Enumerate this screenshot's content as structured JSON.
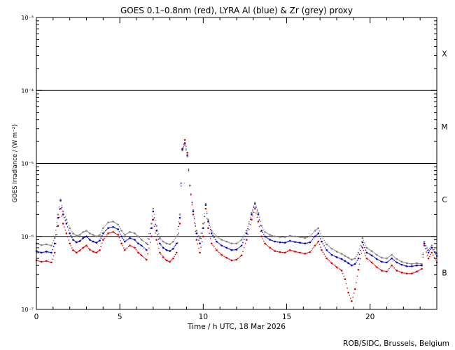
{
  "chart_data": {
    "type": "scatter",
    "title": "GOES 0.1–0.8nm (red), LYRA Al (blue) & Zr (grey) proxy",
    "xlabel": "Time / h UTC, 18 Mar 2026",
    "ylabel": "GOES Irradiance / (W m⁻²)",
    "credit": "ROB/SIDC, Brussels, Belgium",
    "xlim": [
      0,
      24
    ],
    "ylim": [
      1e-07,
      0.001
    ],
    "yscale": "log",
    "xticks": [
      0,
      5,
      10,
      15,
      20
    ],
    "xtick_labels": [
      "0",
      "5",
      "10",
      "15",
      "20"
    ],
    "yticks": [
      1e-07,
      1e-06,
      1e-05,
      0.0001,
      0.001
    ],
    "ytick_labels": [
      "10⁻⁷",
      "10⁻⁶",
      "10⁻⁵",
      "10⁻⁴",
      "10⁻³"
    ],
    "hlines": [
      1e-06,
      1e-05,
      0.0001
    ],
    "class_labels": [
      {
        "label": "B",
        "y": 3.2e-07
      },
      {
        "label": "C",
        "y": 3.2e-06
      },
      {
        "label": "M",
        "y": 3.2e-05
      },
      {
        "label": "X",
        "y": 0.00032
      }
    ],
    "colors": {
      "goes": "#dd0000",
      "lyra_al": "#0000cc",
      "lyra_zr": "#808080"
    },
    "series": [
      {
        "name": "GOES 0.1–0.8nm",
        "color": "#dd0000",
        "x": [
          0.0,
          0.3,
          0.6,
          0.9,
          1.1,
          1.3,
          1.45,
          1.6,
          1.8,
          2.0,
          2.2,
          2.4,
          2.6,
          2.8,
          3.0,
          3.2,
          3.4,
          3.6,
          3.8,
          4.0,
          4.3,
          4.6,
          4.9,
          5.1,
          5.3,
          5.6,
          5.9,
          6.1,
          6.3,
          6.6,
          6.9,
          7.0,
          7.2,
          7.4,
          7.6,
          7.8,
          8.0,
          8.2,
          8.4,
          8.6,
          8.75,
          8.9,
          9.05,
          9.2,
          9.4,
          9.6,
          9.8,
          10.0,
          10.15,
          10.3,
          10.5,
          10.8,
          11.1,
          11.4,
          11.7,
          12.0,
          12.3,
          12.6,
          12.9,
          13.1,
          13.3,
          13.5,
          13.7,
          14.0,
          14.3,
          14.6,
          14.9,
          15.2,
          15.5,
          15.8,
          16.1,
          16.4,
          16.7,
          16.9,
          17.1,
          17.4,
          17.7,
          18.0,
          18.3,
          18.5,
          18.7,
          18.9,
          19.1,
          19.3,
          19.55,
          19.8,
          20.1,
          20.4,
          20.7,
          21.0,
          21.3,
          21.6,
          21.9,
          22.2,
          22.5,
          22.8,
          23.1,
          23.25,
          23.5,
          23.7,
          24.0
        ],
        "y": [
          4.7e-07,
          4.5e-07,
          4.6e-07,
          4.4e-07,
          6e-07,
          1.4e-06,
          2.4e-06,
          1.5e-06,
          1.1e-06,
          8e-07,
          6.5e-07,
          6e-07,
          6.4e-07,
          7e-07,
          7.5e-07,
          6.6e-07,
          6.2e-07,
          6e-07,
          6.5e-07,
          9e-07,
          1.1e-06,
          1.15e-06,
          1.05e-06,
          8e-07,
          6.5e-07,
          7.5e-07,
          7e-07,
          6e-07,
          5.5e-07,
          4.8e-07,
          1e-06,
          1.7e-06,
          9e-07,
          6e-07,
          5.2e-07,
          4.7e-07,
          4.5e-07,
          5e-07,
          6e-07,
          1.5e-06,
          1.6e-05,
          2.1e-05,
          1.4e-05,
          5e-06,
          2e-06,
          9e-07,
          6e-07,
          1e-06,
          2.4e-06,
          1.3e-06,
          8e-07,
          6.5e-07,
          5.6e-07,
          5.1e-07,
          4.7e-07,
          4.8e-07,
          5.5e-07,
          9e-07,
          1.7e-06,
          2.4e-06,
          1.6e-06,
          1e-06,
          8e-07,
          7e-07,
          6.3e-07,
          6.1e-07,
          6e-07,
          6.5e-07,
          6.2e-07,
          6e-07,
          5.8e-07,
          6.1e-07,
          7.5e-07,
          8.5e-07,
          6.5e-07,
          5e-07,
          4.3e-07,
          3.8e-07,
          3.4e-07,
          2.6e-07,
          1.7e-07,
          1.3e-07,
          1.9e-07,
          3.5e-07,
          7e-07,
          5e-07,
          4.4e-07,
          3.8e-07,
          3.4e-07,
          3.3e-07,
          4e-07,
          3.4e-07,
          3.2e-07,
          3.1e-07,
          3.1e-07,
          3.3e-07,
          3.6e-07,
          7.5e-07,
          5e-07,
          6e-07,
          4.4e-07
        ]
      },
      {
        "name": "LYRA Al proxy",
        "color": "#0000cc",
        "x": [
          0.0,
          0.3,
          0.6,
          0.9,
          1.1,
          1.3,
          1.45,
          1.6,
          1.8,
          2.0,
          2.2,
          2.4,
          2.6,
          2.8,
          3.0,
          3.2,
          3.4,
          3.6,
          3.8,
          4.0,
          4.3,
          4.6,
          4.9,
          5.1,
          5.3,
          5.6,
          5.9,
          6.1,
          6.3,
          6.6,
          6.9,
          7.0,
          7.2,
          7.4,
          7.6,
          7.8,
          8.0,
          8.2,
          8.4,
          8.6,
          8.75,
          8.9,
          9.05,
          9.2,
          9.4,
          9.6,
          9.8,
          10.0,
          10.15,
          10.3,
          10.5,
          10.8,
          11.1,
          11.4,
          11.7,
          12.0,
          12.3,
          12.6,
          12.9,
          13.1,
          13.3,
          13.5,
          13.7,
          14.0,
          14.3,
          14.6,
          14.9,
          15.2,
          15.5,
          15.8,
          16.1,
          16.4,
          16.7,
          16.9,
          17.1,
          17.4,
          17.7,
          18.0,
          18.3,
          18.5,
          18.7,
          18.9,
          19.1,
          19.3,
          19.55,
          19.8,
          20.1,
          20.4,
          20.7,
          21.0,
          21.3,
          21.6,
          21.9,
          22.2,
          22.5,
          22.8,
          23.1,
          23.25,
          23.5,
          23.7,
          24.0
        ],
        "y": [
          6.3e-07,
          6e-07,
          6.2e-07,
          6e-07,
          8e-07,
          1.8e-06,
          3.1e-06,
          2e-06,
          1.5e-06,
          1.1e-06,
          9e-07,
          8.3e-07,
          8.6e-07,
          9.5e-07,
          1e-06,
          9e-07,
          8.5e-07,
          8.2e-07,
          8.8e-07,
          1.1e-06,
          1.3e-06,
          1.35e-06,
          1.25e-06,
          1e-06,
          8.5e-07,
          9.5e-07,
          9e-07,
          8e-07,
          7.5e-07,
          6.5e-07,
          1.3e-06,
          2.2e-06,
          1.2e-06,
          8e-07,
          7e-07,
          6.5e-07,
          6.3e-07,
          6.8e-07,
          8e-07,
          1.8e-06,
          1.55e-05,
          1.9e-05,
          1.3e-05,
          5e-06,
          2.2e-06,
          1.1e-06,
          8e-07,
          1.3e-06,
          2.7e-06,
          1.6e-06,
          1.1e-06,
          8.5e-07,
          7.5e-07,
          7e-07,
          6.5e-07,
          6.6e-07,
          7.5e-07,
          1.1e-06,
          2e-06,
          2.8e-06,
          2e-06,
          1.2e-06,
          1e-06,
          9e-07,
          8.5e-07,
          8.3e-07,
          8.2e-07,
          8.7e-07,
          8.4e-07,
          8.2e-07,
          8e-07,
          8.3e-07,
          1e-06,
          1.1e-06,
          8.5e-07,
          6.5e-07,
          5.6e-07,
          5.2e-07,
          4.9e-07,
          4.6e-07,
          4.3e-07,
          4e-07,
          4.2e-07,
          5e-07,
          8.3e-07,
          6e-07,
          5.5e-07,
          4.9e-07,
          4.5e-07,
          4.4e-07,
          5e-07,
          4.4e-07,
          4.1e-07,
          3.9e-07,
          3.9e-07,
          4e-07,
          4e-07,
          8e-07,
          6e-07,
          7e-07,
          5.4e-07
        ]
      },
      {
        "name": "LYRA Zr proxy",
        "color": "#808080",
        "x": [
          0.0,
          0.3,
          0.6,
          0.9,
          1.1,
          1.3,
          1.45,
          1.6,
          1.8,
          2.0,
          2.2,
          2.4,
          2.6,
          2.8,
          3.0,
          3.2,
          3.4,
          3.6,
          3.8,
          4.0,
          4.3,
          4.6,
          4.9,
          5.1,
          5.3,
          5.6,
          5.9,
          6.1,
          6.3,
          6.6,
          6.9,
          7.0,
          7.2,
          7.4,
          7.6,
          7.8,
          8.0,
          8.2,
          8.4,
          8.6,
          8.75,
          8.9,
          9.05,
          9.2,
          9.4,
          9.6,
          9.8,
          10.0,
          10.15,
          10.3,
          10.5,
          10.8,
          11.1,
          11.4,
          11.7,
          12.0,
          12.3,
          12.6,
          12.9,
          13.1,
          13.3,
          13.5,
          13.7,
          14.0,
          14.3,
          14.6,
          14.9,
          15.2,
          15.5,
          15.8,
          16.1,
          16.4,
          16.7,
          16.9,
          17.1,
          17.4,
          17.7,
          18.0,
          18.3,
          18.5,
          18.7,
          18.9,
          19.1,
          19.3,
          19.55,
          19.8,
          20.1,
          20.4,
          20.7,
          21.0,
          21.3,
          21.6,
          21.9,
          22.2,
          22.5,
          22.8,
          23.1,
          23.25,
          23.5,
          23.7,
          24.0
        ],
        "y": [
          8e-07,
          7.6e-07,
          7.8e-07,
          7.5e-07,
          9.5e-07,
          2e-06,
          3.2e-06,
          2.2e-06,
          1.7e-06,
          1.3e-06,
          1.1e-06,
          1.02e-06,
          1.05e-06,
          1.15e-06,
          1.2e-06,
          1.1e-06,
          1.05e-06,
          1e-06,
          1.05e-06,
          1.3e-06,
          1.55e-06,
          1.6e-06,
          1.45e-06,
          1.2e-06,
          1.05e-06,
          1.15e-06,
          1.1e-06,
          1e-06,
          9e-07,
          8e-07,
          1.5e-06,
          2.4e-06,
          1.4e-06,
          9.5e-07,
          8.5e-07,
          8e-07,
          7.8e-07,
          8.5e-07,
          1e-06,
          2e-06,
          1.5e-05,
          1.8e-05,
          1.25e-05,
          5e-06,
          2.3e-06,
          1.2e-06,
          9.5e-07,
          1.5e-06,
          2.8e-06,
          1.7e-06,
          1.2e-06,
          1e-06,
          9e-07,
          8.5e-07,
          8e-07,
          8e-07,
          9e-07,
          1.2e-06,
          2.1e-06,
          2.9e-06,
          2.1e-06,
          1.4e-06,
          1.15e-06,
          1.05e-06,
          1e-06,
          9.8e-07,
          9.8e-07,
          1.02e-06,
          1e-06,
          9.8e-07,
          9.5e-07,
          1e-06,
          1.2e-06,
          1.3e-06,
          1e-06,
          7.8e-07,
          6.8e-07,
          6.2e-07,
          5.8e-07,
          5.4e-07,
          5.1e-07,
          4.8e-07,
          5e-07,
          6e-07,
          9.5e-07,
          7e-07,
          6.3e-07,
          5.6e-07,
          5.1e-07,
          5e-07,
          5.6e-07,
          4.9e-07,
          4.5e-07,
          4.3e-07,
          4.2e-07,
          4.3e-07,
          4.2e-07,
          8.5e-07,
          6.5e-07,
          7.5e-07,
          5.8e-07
        ]
      }
    ]
  }
}
